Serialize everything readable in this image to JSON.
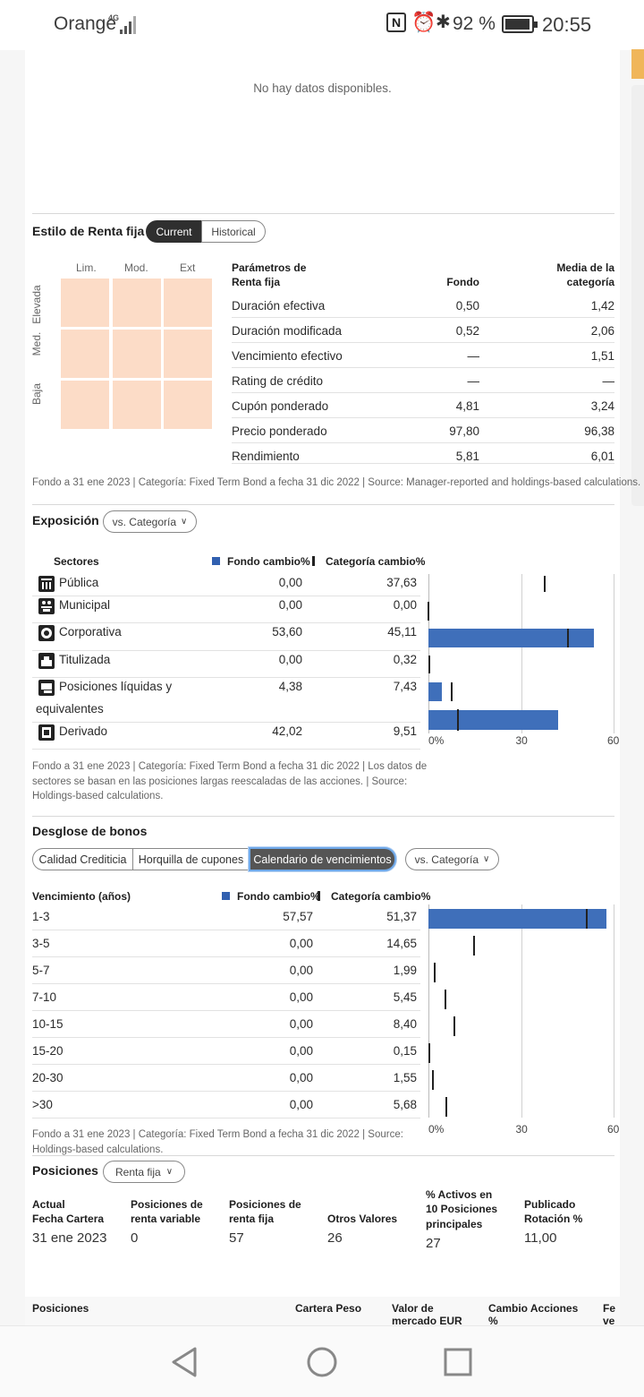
{
  "status_bar": {
    "carrier": "Orange",
    "network": "4G",
    "battery": "92 %",
    "time": "20:55"
  },
  "no_data": "No hay datos disponibles.",
  "renta_fija": {
    "title": "Estilo de Renta fija",
    "tabs": [
      "Current",
      "Historical"
    ],
    "grid_cols": [
      "Lim.",
      "Mod.",
      "Ext"
    ],
    "grid_rows": [
      "Elevada",
      "Med.",
      "Baja"
    ],
    "table_headers": [
      "Parámetros de",
      "Renta fija",
      "Fondo",
      "Media de la",
      "categoría"
    ],
    "rows": [
      {
        "label": "Duración efectiva",
        "fondo": "0,50",
        "media": "1,42"
      },
      {
        "label": "Duración modificada",
        "fondo": "0,52",
        "media": "2,06"
      },
      {
        "label": "Vencimiento efectivo",
        "fondo": "—",
        "media": "1,51"
      },
      {
        "label": "Rating de crédito",
        "fondo": "—",
        "media": "—"
      },
      {
        "label": "Cupón ponderado",
        "fondo": "4,81",
        "media": "3,24"
      },
      {
        "label": "Precio ponderado",
        "fondo": "97,80",
        "media": "96,38"
      },
      {
        "label": "Rendimiento",
        "fondo": "5,81",
        "media": "6,01"
      }
    ],
    "footnote": "Fondo a 31 ene 2023 | Categoría: Fixed Term Bond a fecha 31 dic 2022 | Source: Manager-reported and holdings-based calculations."
  },
  "exposicion": {
    "title": "Exposición",
    "compare": "vs. Categoría",
    "col_sectores": "Sectores",
    "col_fondo": "Fondo  cambio%",
    "col_categoria": "Categoría  cambio%",
    "rows": [
      {
        "label": "Pública",
        "fondo": "0,00",
        "categoria": "37,63"
      },
      {
        "label": "Municipal",
        "fondo": "0,00",
        "categoria": "0,00"
      },
      {
        "label": "Corporativa",
        "fondo": "53,60",
        "categoria": "45,11"
      },
      {
        "label": "Titulizada",
        "fondo": "0,00",
        "categoria": "0,32"
      },
      {
        "label": "Posiciones líquidas y",
        "label2": "equivalentes",
        "fondo": "4,38",
        "categoria": "7,43"
      },
      {
        "label": "Derivado",
        "fondo": "42,02",
        "categoria": "9,51"
      }
    ],
    "footnote": [
      "Fondo a 31 ene 2023 | Categoría: Fixed Term Bond a fecha 31 dic 2022 | Los datos de",
      "sectores se basan en las posiciones largas reescaladas de las acciones. | Source:",
      "Holdings-based calculations."
    ],
    "axis_ticks": [
      "0%",
      "30",
      "60"
    ]
  },
  "desglose": {
    "title": "Desglose de bonos",
    "tabs": [
      "Calidad Crediticia",
      "Horquilla de cupones",
      "Calendario de vencimientos"
    ],
    "compare": "vs. Categoría",
    "col_venc": "Vencimiento (años)",
    "col_fondo": "Fondo  cambio%",
    "col_categoria": "Categoría  cambio%",
    "rows": [
      {
        "label": "1-3",
        "fondo": "57,57",
        "categoria": "51,37"
      },
      {
        "label": "3-5",
        "fondo": "0,00",
        "categoria": "14,65"
      },
      {
        "label": "5-7",
        "fondo": "0,00",
        "categoria": "1,99"
      },
      {
        "label": "7-10",
        "fondo": "0,00",
        "categoria": "5,45"
      },
      {
        "label": "10-15",
        "fondo": "0,00",
        "categoria": "8,40"
      },
      {
        "label": "15-20",
        "fondo": "0,00",
        "categoria": "0,15"
      },
      {
        "label": "20-30",
        "fondo": "0,00",
        "categoria": "1,55"
      },
      {
        "label": ">30",
        "fondo": "0,00",
        "categoria": "5,68"
      }
    ],
    "footnote": [
      "Fondo a 31 ene 2023 | Categoría: Fixed Term Bond a fecha 31 dic 2022 | Source:",
      "Holdings-based calculations."
    ],
    "axis_ticks": [
      "0%",
      "30",
      "60"
    ]
  },
  "posiciones": {
    "title": "Posiciones",
    "filter": "Renta fija",
    "stats": [
      {
        "label1": "Actual",
        "label2": "Fecha Cartera",
        "value": "31 ene 2023"
      },
      {
        "label1": "Posiciones de",
        "label2": "renta variable",
        "value": "0"
      },
      {
        "label1": "Posiciones de",
        "label2": "renta fija",
        "value": "57"
      },
      {
        "label1": "",
        "label2": "Otros Valores",
        "value": "26"
      },
      {
        "label1": "% Activos en",
        "label2": "10 Posiciones",
        "label3": "principales",
        "value": "27"
      },
      {
        "label1": "Publicado",
        "label2": "Rotación %",
        "value": "11,00"
      }
    ],
    "table_headers": [
      "Posiciones",
      "Cartera Peso",
      "Valor de",
      "mercado EUR",
      "Cambio Acciones",
      "%",
      "Fe",
      "ve"
    ]
  },
  "chart_data": [
    {
      "type": "bar",
      "title": "",
      "categories": [
        "Pública",
        "Municipal",
        "Corporativa",
        "Titulizada",
        "Posiciones líquidas y equivalentes",
        "Derivado"
      ],
      "series": [
        {
          "name": "Fondo",
          "values": [
            0.0,
            0.0,
            53.6,
            0.0,
            4.38,
            42.02
          ]
        },
        {
          "name": "Categoría",
          "values": [
            37.63,
            0.0,
            45.11,
            0.32,
            7.43,
            9.51
          ]
        }
      ],
      "xlim": [
        0,
        60
      ],
      "orientation": "horizontal",
      "grid": true
    },
    {
      "type": "bar",
      "title": "",
      "categories": [
        "1-3",
        "3-5",
        "5-7",
        "7-10",
        "10-15",
        "15-20",
        "20-30",
        ">30"
      ],
      "series": [
        {
          "name": "Fondo",
          "values": [
            57.57,
            0,
            0,
            0,
            0,
            0,
            0,
            0
          ]
        },
        {
          "name": "Categoría",
          "values": [
            51.37,
            14.65,
            1.99,
            5.45,
            8.4,
            0.15,
            1.55,
            5.68
          ]
        }
      ],
      "xlim": [
        0,
        60
      ],
      "orientation": "horizontal",
      "grid": true
    }
  ]
}
